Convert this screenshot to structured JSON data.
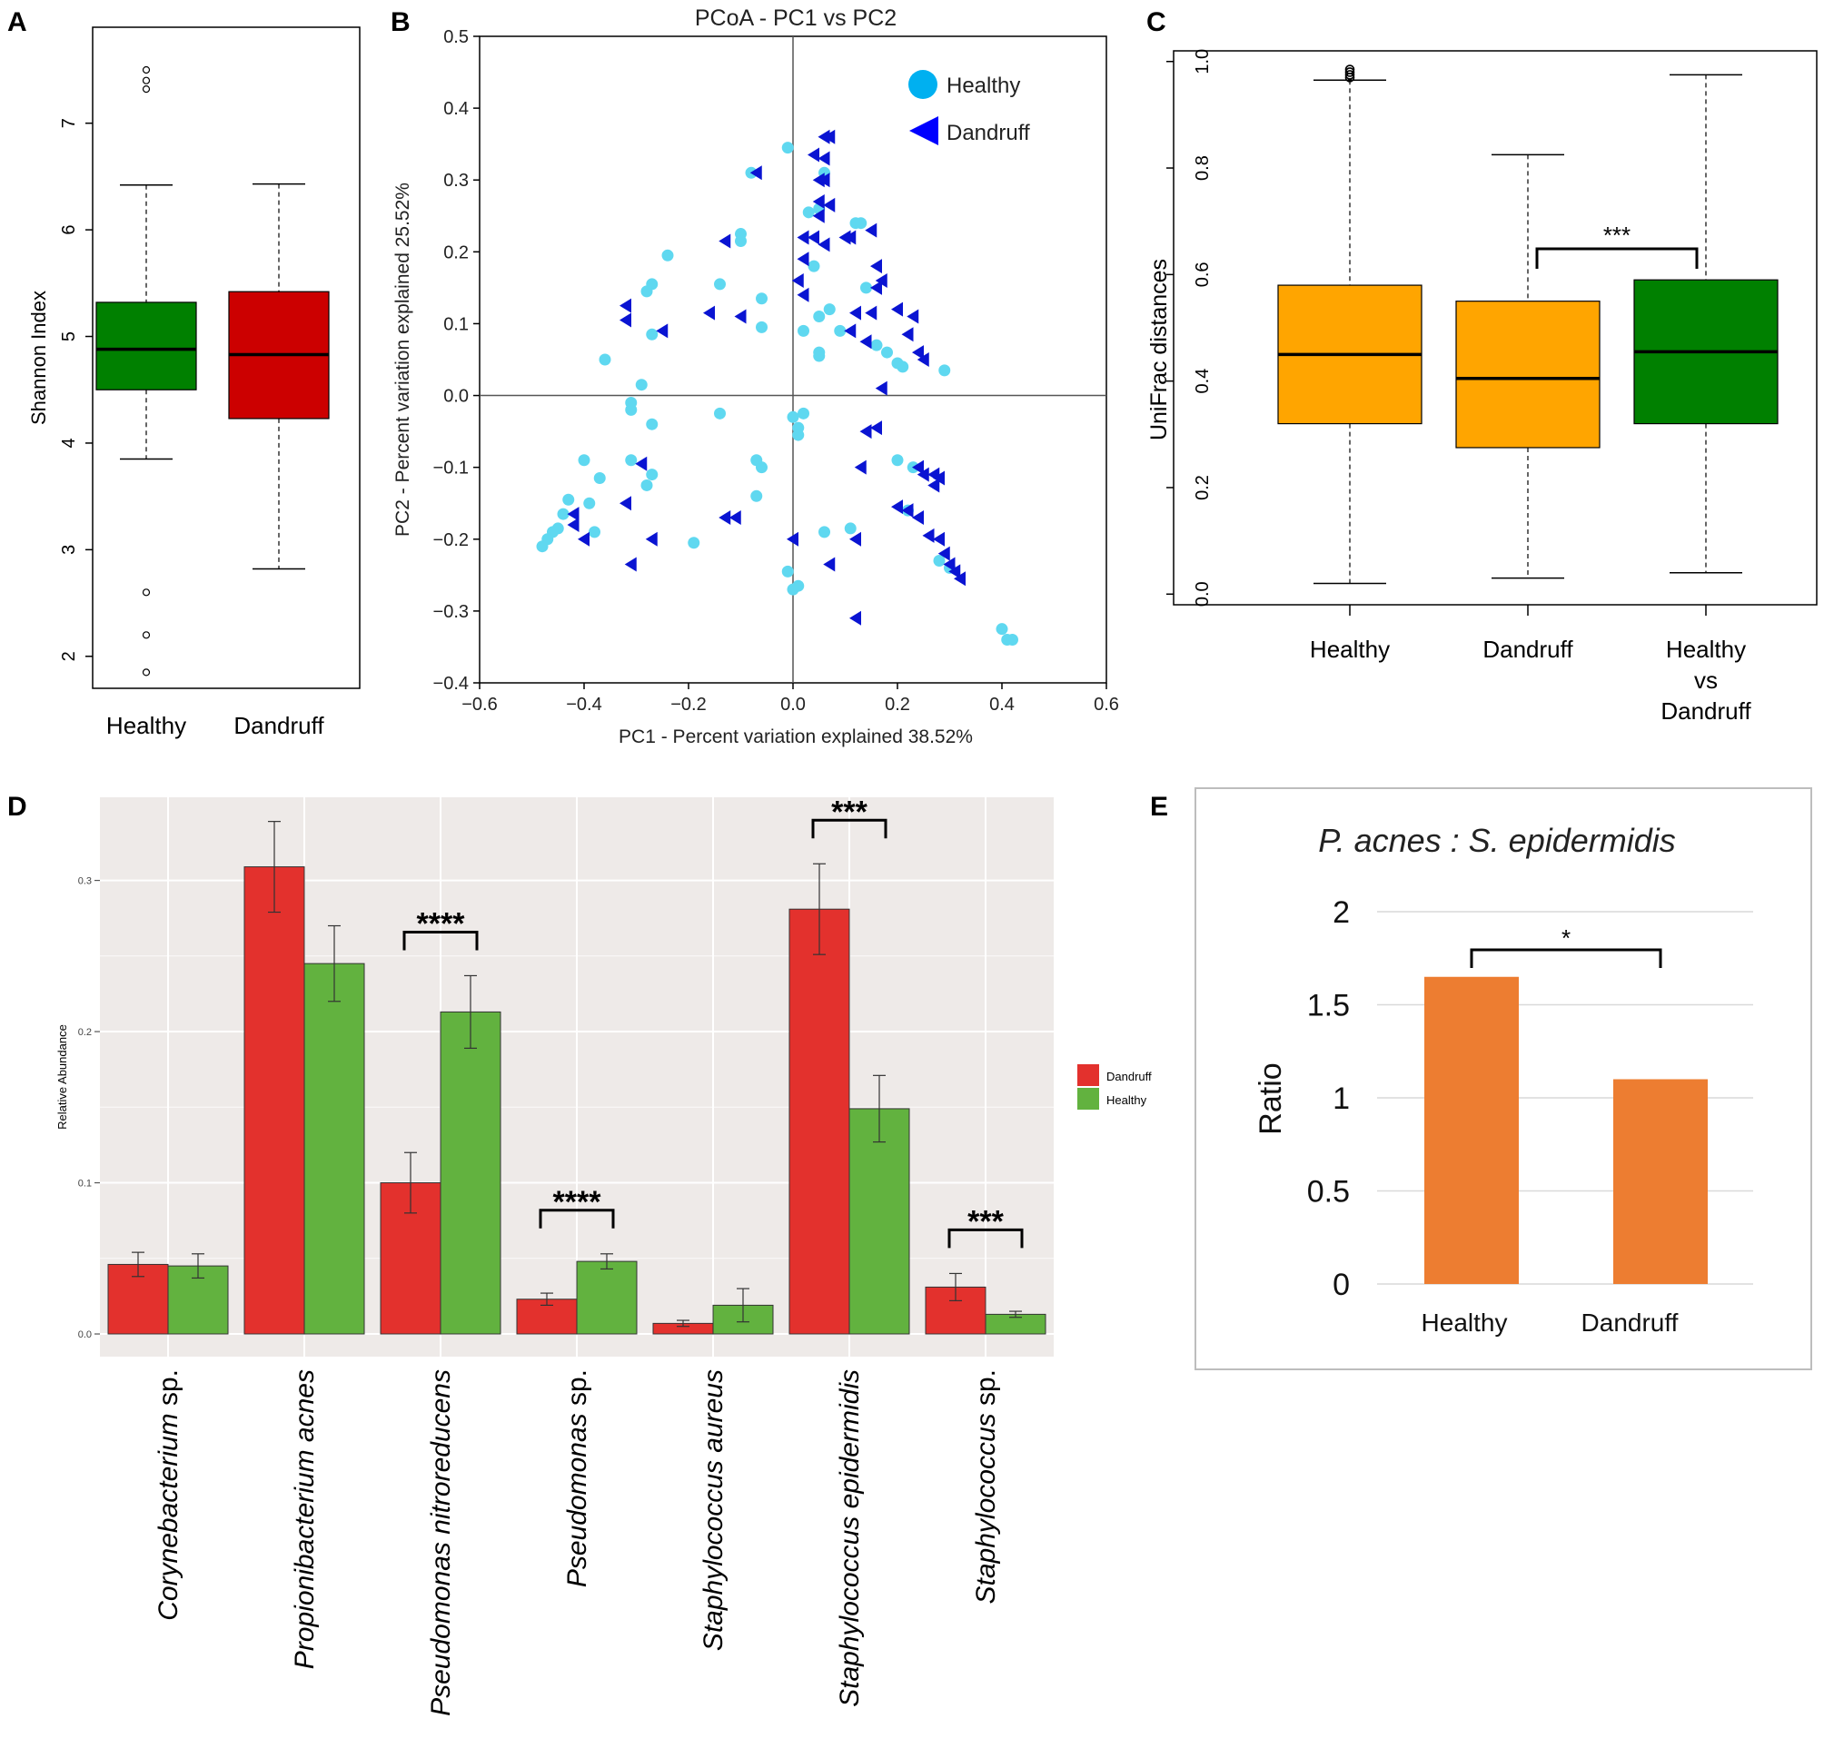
{
  "figure": {
    "panel_labels": [
      "A",
      "B",
      "C",
      "D",
      "E"
    ]
  },
  "chart_data": [
    {
      "panel": "A",
      "type": "box",
      "ylabel": "Shannon Index",
      "ylim": [
        1.7,
        7.9
      ],
      "yticks": [
        "2",
        "3",
        "4",
        "5",
        "6",
        "7"
      ],
      "groups": [
        {
          "name": "Healthy",
          "color": "#008000",
          "min": 3.85,
          "q1": 4.5,
          "median": 4.88,
          "q3": 5.32,
          "max": 6.42,
          "outliers": [
            7.5,
            7.4,
            7.32,
            2.6,
            2.2,
            1.85
          ]
        },
        {
          "name": "Dandruff",
          "color": "#cc0000",
          "min": 2.82,
          "q1": 4.23,
          "median": 4.83,
          "q3": 5.42,
          "max": 6.43,
          "outliers": []
        }
      ]
    },
    {
      "panel": "B",
      "type": "scatter",
      "title": "PCoA - PC1 vs PC2",
      "xlabel": "PC1 - Percent variation explained 38.52%",
      "ylabel": "PC2 - Percent variation explained 25.52%",
      "xlim": [
        -0.6,
        0.6
      ],
      "ylim": [
        -0.4,
        0.5
      ],
      "xticks": [
        "−0.6",
        "−0.4",
        "−0.2",
        "0.0",
        "0.2",
        "0.4",
        "0.6"
      ],
      "yticks": [
        "−0.4",
        "−0.3",
        "−0.2",
        "−0.1",
        "0.0",
        "0.1",
        "0.2",
        "0.3",
        "0.4",
        "0.5"
      ],
      "series": [
        {
          "name": "Healthy",
          "marker": "circle",
          "color": "#5fd8f0",
          "legend_color": "#00b0f0",
          "points": [
            [
              -0.01,
              0.345
            ],
            [
              -0.08,
              0.31
            ],
            [
              -0.1,
              0.225
            ],
            [
              -0.1,
              0.215
            ],
            [
              -0.24,
              0.195
            ],
            [
              -0.14,
              0.155
            ],
            [
              -0.06,
              0.135
            ],
            [
              -0.27,
              0.155
            ],
            [
              -0.28,
              0.145
            ],
            [
              -0.06,
              0.095
            ],
            [
              -0.27,
              0.085
            ],
            [
              -0.36,
              0.05
            ],
            [
              -0.29,
              0.015
            ],
            [
              -0.31,
              -0.01
            ],
            [
              -0.31,
              -0.02
            ],
            [
              -0.27,
              -0.04
            ],
            [
              -0.14,
              -0.025
            ],
            [
              -0.4,
              -0.09
            ],
            [
              -0.37,
              -0.115
            ],
            [
              -0.43,
              -0.145
            ],
            [
              -0.44,
              -0.165
            ],
            [
              -0.45,
              -0.185
            ],
            [
              -0.47,
              -0.2
            ],
            [
              -0.48,
              -0.21
            ],
            [
              -0.46,
              -0.19
            ],
            [
              -0.39,
              -0.15
            ],
            [
              -0.38,
              -0.19
            ],
            [
              -0.31,
              -0.09
            ],
            [
              -0.27,
              -0.11
            ],
            [
              -0.28,
              -0.125
            ],
            [
              -0.19,
              -0.205
            ],
            [
              -0.07,
              -0.09
            ],
            [
              -0.07,
              -0.14
            ],
            [
              -0.06,
              -0.1
            ],
            [
              0.0,
              -0.03
            ],
            [
              0.01,
              -0.045
            ],
            [
              0.02,
              -0.025
            ],
            [
              0.01,
              -0.055
            ],
            [
              0.04,
              0.18
            ],
            [
              0.05,
              0.26
            ],
            [
              0.06,
              0.31
            ],
            [
              0.03,
              0.255
            ],
            [
              0.05,
              0.11
            ],
            [
              0.07,
              0.12
            ],
            [
              0.09,
              0.09
            ],
            [
              0.14,
              0.15
            ],
            [
              0.12,
              0.24
            ],
            [
              0.13,
              0.24
            ],
            [
              0.05,
              0.055
            ],
            [
              0.02,
              0.09
            ],
            [
              0.16,
              0.07
            ],
            [
              0.18,
              0.06
            ],
            [
              0.2,
              0.045
            ],
            [
              0.21,
              0.04
            ],
            [
              0.29,
              0.035
            ],
            [
              0.05,
              0.06
            ],
            [
              -0.01,
              -0.245
            ],
            [
              0.0,
              -0.27
            ],
            [
              0.01,
              -0.265
            ],
            [
              0.06,
              -0.19
            ],
            [
              0.11,
              -0.185
            ],
            [
              0.2,
              -0.09
            ],
            [
              0.22,
              -0.16
            ],
            [
              0.23,
              -0.1
            ],
            [
              0.28,
              -0.23
            ],
            [
              0.3,
              -0.24
            ],
            [
              0.4,
              -0.325
            ],
            [
              0.41,
              -0.34
            ],
            [
              0.42,
              -0.34
            ]
          ]
        },
        {
          "name": "Dandruff",
          "marker": "triangle",
          "color": "#0a14d2",
          "legend_color": "#0000ff",
          "points": [
            [
              0.06,
              0.36
            ],
            [
              0.07,
              0.36
            ],
            [
              0.04,
              0.335
            ],
            [
              0.06,
              0.33
            ],
            [
              0.05,
              0.3
            ],
            [
              0.06,
              0.3
            ],
            [
              -0.07,
              0.31
            ],
            [
              0.05,
              0.27
            ],
            [
              0.07,
              0.265
            ],
            [
              0.02,
              0.22
            ],
            [
              0.04,
              0.22
            ],
            [
              0.1,
              0.22
            ],
            [
              0.11,
              0.22
            ],
            [
              0.15,
              0.23
            ],
            [
              0.02,
              0.19
            ],
            [
              0.16,
              0.18
            ],
            [
              0.17,
              0.16
            ],
            [
              0.16,
              0.15
            ],
            [
              0.01,
              0.16
            ],
            [
              0.02,
              0.14
            ],
            [
              -0.13,
              0.215
            ],
            [
              -0.32,
              0.125
            ],
            [
              -0.32,
              0.105
            ],
            [
              -0.25,
              0.09
            ],
            [
              -0.16,
              0.115
            ],
            [
              -0.1,
              0.11
            ],
            [
              0.12,
              0.115
            ],
            [
              0.15,
              0.115
            ],
            [
              0.2,
              0.12
            ],
            [
              0.23,
              0.11
            ],
            [
              0.22,
              0.085
            ],
            [
              0.14,
              0.075
            ],
            [
              0.11,
              0.09
            ],
            [
              0.24,
              0.06
            ],
            [
              0.25,
              0.05
            ],
            [
              0.17,
              0.01
            ],
            [
              0.16,
              -0.045
            ],
            [
              0.14,
              -0.05
            ],
            [
              0.13,
              -0.1
            ],
            [
              0.24,
              -0.1
            ],
            [
              0.25,
              -0.11
            ],
            [
              0.27,
              -0.11
            ],
            [
              0.28,
              -0.115
            ],
            [
              0.27,
              -0.125
            ],
            [
              0.2,
              -0.155
            ],
            [
              0.22,
              -0.16
            ],
            [
              0.24,
              -0.17
            ],
            [
              0.26,
              -0.195
            ],
            [
              0.28,
              -0.2
            ],
            [
              0.29,
              -0.22
            ],
            [
              0.31,
              -0.245
            ],
            [
              0.32,
              -0.255
            ],
            [
              0.3,
              -0.235
            ],
            [
              0.12,
              -0.2
            ],
            [
              0.12,
              -0.31
            ],
            [
              0.07,
              -0.235
            ],
            [
              -0.11,
              -0.17
            ],
            [
              -0.13,
              -0.17
            ],
            [
              -0.27,
              -0.2
            ],
            [
              -0.31,
              -0.235
            ],
            [
              -0.32,
              -0.15
            ],
            [
              -0.4,
              -0.2
            ],
            [
              -0.42,
              -0.165
            ],
            [
              -0.42,
              -0.18
            ],
            [
              0.0,
              -0.2
            ],
            [
              -0.29,
              -0.095
            ],
            [
              0.06,
              0.21
            ],
            [
              0.05,
              0.25
            ]
          ]
        }
      ]
    },
    {
      "panel": "C",
      "type": "box",
      "ylabel": "UniFrac distances",
      "ylim": [
        -0.02,
        1.02
      ],
      "yticks": [
        "0.0",
        "0.2",
        "0.4",
        "0.6",
        "0.8",
        "1.0"
      ],
      "groups": [
        {
          "name": "Healthy",
          "color": "#ffa500",
          "min": 0.02,
          "q1": 0.32,
          "median": 0.45,
          "q3": 0.58,
          "max": 0.965,
          "outliers": [
            0.97,
            0.975,
            0.98,
            0.985
          ]
        },
        {
          "name": "Dandruff",
          "color": "#ffa500",
          "min": 0.03,
          "q1": 0.275,
          "median": 0.405,
          "q3": 0.55,
          "max": 0.825,
          "outliers": []
        },
        {
          "name": "Healthy\nvs\nDandruff",
          "color": "#008000",
          "min": 0.04,
          "q1": 0.32,
          "median": 0.455,
          "q3": 0.59,
          "max": 0.975,
          "outliers": []
        }
      ],
      "significance": [
        {
          "from": 1,
          "to": 2,
          "label": "***"
        }
      ]
    },
    {
      "panel": "D",
      "type": "bar",
      "ylabel": "Relative Abundance",
      "ylim": [
        -0.015,
        0.355
      ],
      "yticks": [
        "0.0",
        "0.1",
        "0.2",
        "0.3"
      ],
      "categories": [
        {
          "italic": "Corynebacterium",
          "plain": " sp."
        },
        {
          "italic": "Propionibacterium acnes",
          "plain": ""
        },
        {
          "italic": "Pseudomonas nitroreducens",
          "plain": ""
        },
        {
          "italic": "Pseudomonas",
          "plain": " sp."
        },
        {
          "italic": "Staphylococcus aureus",
          "plain": ""
        },
        {
          "italic": "Staphylococcus epidermidis",
          "plain": ""
        },
        {
          "italic": "Staphylococcus",
          "plain": " sp."
        }
      ],
      "series": [
        {
          "name": "Dandruff",
          "color": "#e3312d",
          "values": [
            0.046,
            0.309,
            0.1,
            0.023,
            0.007,
            0.281,
            0.031
          ],
          "errors": [
            0.008,
            0.03,
            0.02,
            0.004,
            0.002,
            0.03,
            0.009
          ]
        },
        {
          "name": "Healthy",
          "color": "#62b23f",
          "values": [
            0.045,
            0.245,
            0.213,
            0.048,
            0.019,
            0.149,
            0.013
          ],
          "errors": [
            0.008,
            0.025,
            0.024,
            0.005,
            0.011,
            0.022,
            0.002
          ]
        }
      ],
      "significance": [
        {
          "category": 2,
          "label": "****"
        },
        {
          "category": 3,
          "label": "****"
        },
        {
          "category": 5,
          "label": "***"
        },
        {
          "category": 6,
          "label": "***"
        }
      ]
    },
    {
      "panel": "E",
      "type": "bar",
      "title_italic": "P. acnes : S. epidermidis",
      "ylabel": "Ratio",
      "ylim": [
        0,
        2
      ],
      "yticks": [
        "0",
        "0.5",
        "1",
        "1.5",
        "2"
      ],
      "categories": [
        "Healthy",
        "Dandruff"
      ],
      "values": [
        1.65,
        1.1
      ],
      "color": "#ed7d31",
      "significance": [
        {
          "from": 0,
          "to": 1,
          "label": "*"
        }
      ]
    }
  ]
}
